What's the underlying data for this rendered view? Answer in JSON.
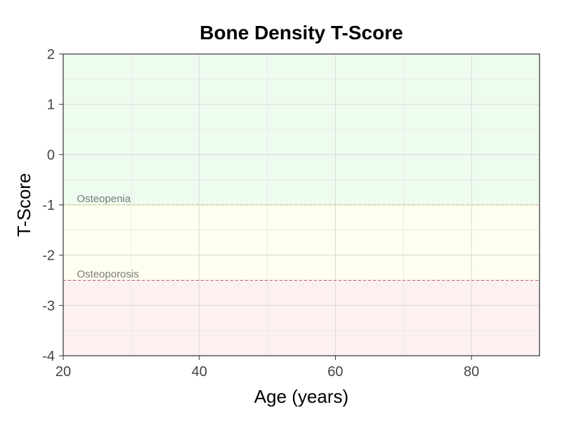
{
  "chart_data": {
    "type": "line",
    "title": "Bone Density T-Score",
    "xlabel": "Age (years)",
    "ylabel": "T-Score",
    "xlim": [
      20,
      90
    ],
    "ylim": [
      -4,
      2
    ],
    "x_ticks": [
      20,
      40,
      60,
      80
    ],
    "y_ticks": [
      -4,
      -3,
      -2,
      -1,
      0,
      1,
      2
    ],
    "x_minor_ticks": [
      30,
      50,
      70
    ],
    "y_minor_ticks": [
      -3.5,
      -2.5,
      -1.5,
      -0.5,
      0.5,
      1.5
    ],
    "grid": true,
    "series": [],
    "bands": [
      {
        "from": -1,
        "to": 2,
        "color": "#eefcf0"
      },
      {
        "from": -2.5,
        "to": -1,
        "color": "#fffff0"
      },
      {
        "from": -4,
        "to": -2.5,
        "color": "#fdf0f0"
      }
    ],
    "reference_lines": [
      {
        "y": -1,
        "label": "Osteopenia",
        "color": "#c8b468"
      },
      {
        "y": -2.5,
        "label": "Osteoporosis",
        "color": "#c05a5a"
      }
    ]
  }
}
